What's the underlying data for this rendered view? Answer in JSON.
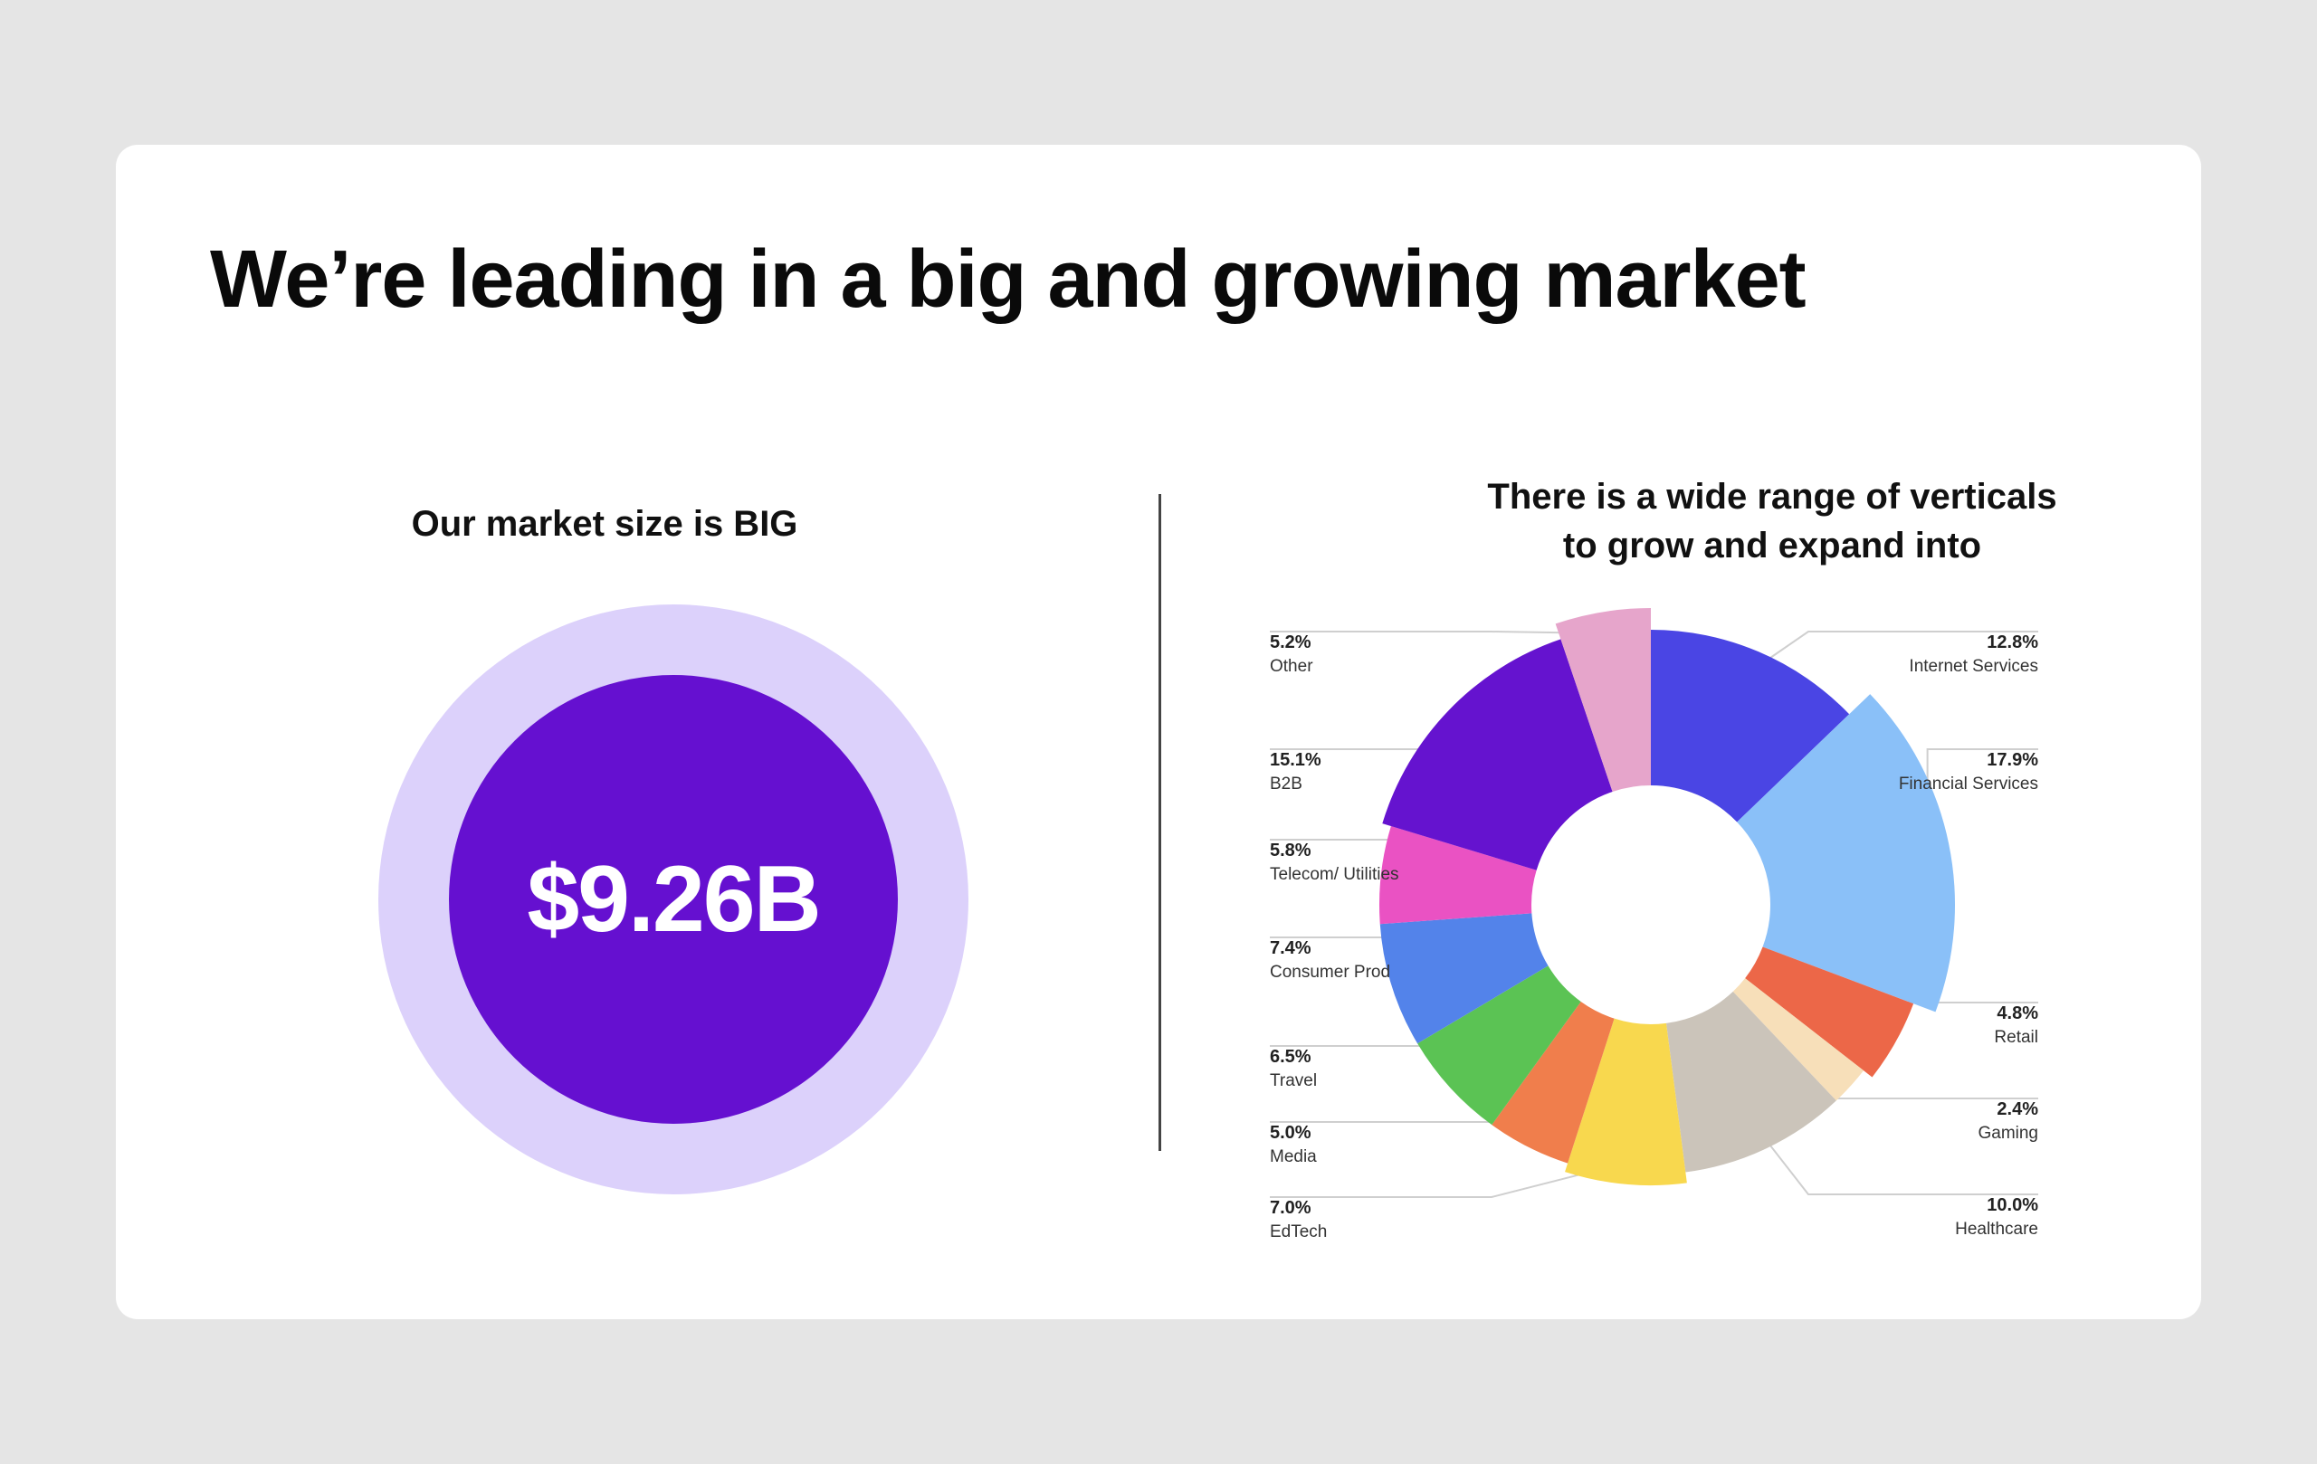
{
  "slide": {
    "title": "We’re leading in a big and growing market"
  },
  "market": {
    "subtitle": "Our market size is BIG",
    "value": "$9.26B",
    "outer_color": "#dcd1fb",
    "inner_color": "#6510d0"
  },
  "verticals": {
    "subtitle_line1": "There is a wide range of verticals",
    "subtitle_line2": "to grow and expand into"
  },
  "chart_data": {
    "type": "pie",
    "donut": true,
    "title": "There is a wide range of verticals to grow and expand into",
    "slices": [
      {
        "name": "Internet Services",
        "label": "12.8%",
        "value": 12.8,
        "color": "#4a45e4"
      },
      {
        "name": "Financial Services",
        "label": "17.9%",
        "value": 17.9,
        "color": "#8ac0f8"
      },
      {
        "name": "Retail",
        "label": "4.8%",
        "value": 4.8,
        "color": "#ec6748"
      },
      {
        "name": "Gaming",
        "label": "2.4%",
        "value": 2.4,
        "color": "#f7dfb9"
      },
      {
        "name": "Healthcare",
        "label": "10.0%",
        "value": 10.0,
        "color": "#cbc4ba"
      },
      {
        "name": "EdTech",
        "label": "7.0%",
        "value": 7.0,
        "color": "#f8d84e"
      },
      {
        "name": "Media",
        "label": "5.0%",
        "value": 5.0,
        "color": "#f07e4c"
      },
      {
        "name": "Travel",
        "label": "6.5%",
        "value": 6.5,
        "color": "#5bc354"
      },
      {
        "name": "Consumer Prod",
        "label": "7.4%",
        "value": 7.4,
        "color": "#5383ea"
      },
      {
        "name": "Telecom/ Utilities",
        "label": "5.8%",
        "value": 5.8,
        "color": "#ea52c3"
      },
      {
        "name": "B2B",
        "label": "15.1%",
        "value": 15.1,
        "color": "#6513cf"
      },
      {
        "name": "Other",
        "label": "5.2%",
        "value": 5.2,
        "color": "#e6a5cb"
      }
    ]
  }
}
